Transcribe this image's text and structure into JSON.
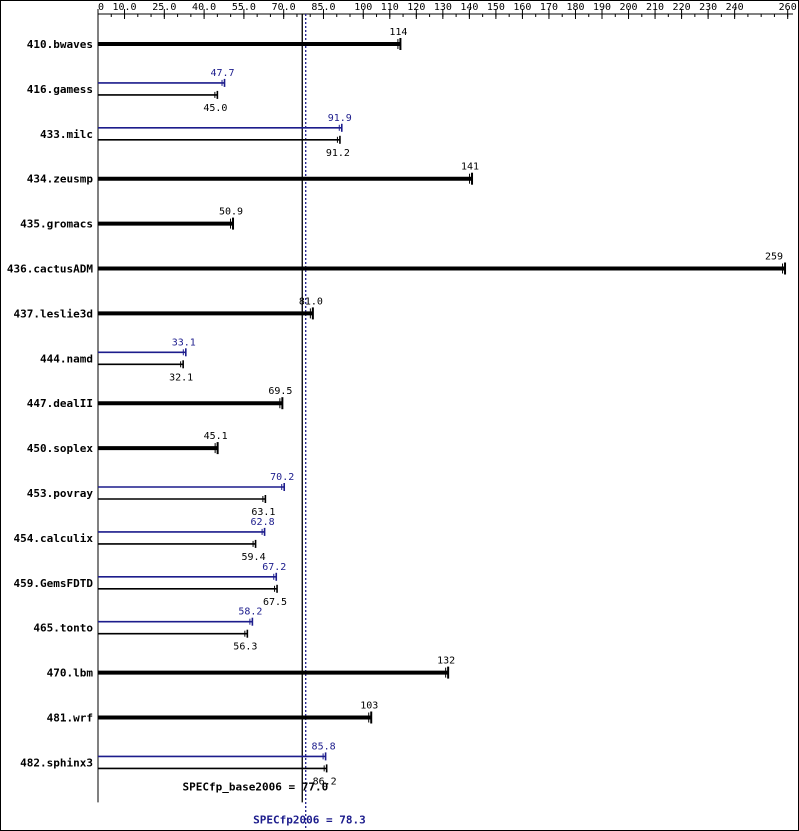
{
  "chart_data": {
    "type": "bar",
    "orientation": "horizontal",
    "axis": {
      "ticks": [
        0,
        10,
        25,
        40,
        55,
        70,
        85,
        100,
        110,
        120,
        130,
        140,
        150,
        160,
        170,
        180,
        190,
        200,
        210,
        220,
        230,
        240,
        260
      ],
      "tick_labels": [
        "0",
        "10.0",
        "25.0",
        "40.0",
        "55.0",
        "70.0",
        "85.0",
        "100",
        "110",
        "120",
        "130",
        "140",
        "150",
        "160",
        "170",
        "180",
        "190",
        "200",
        "210",
        "220",
        "230",
        "240",
        "260"
      ],
      "xlim": [
        0,
        262
      ]
    },
    "categories": [
      "410.bwaves",
      "416.gamess",
      "433.milc",
      "434.zeusmp",
      "435.gromacs",
      "436.cactusADM",
      "437.leslie3d",
      "444.namd",
      "447.dealII",
      "450.soplex",
      "453.povray",
      "454.calculix",
      "459.GemsFDTD",
      "465.tonto",
      "470.lbm",
      "481.wrf",
      "482.sphinx3"
    ],
    "series": [
      {
        "key": "base",
        "color": "#000000",
        "values": [
          114,
          45.0,
          91.2,
          141,
          50.9,
          259,
          81.0,
          32.1,
          69.5,
          45.1,
          63.1,
          59.4,
          67.5,
          56.3,
          132,
          103,
          86.2
        ],
        "labels": [
          "114",
          "45.0",
          "91.2",
          "141",
          "50.9",
          "259",
          "81.0",
          "32.1",
          "69.5",
          "45.1",
          "63.1",
          "59.4",
          "67.5",
          "56.3",
          "132",
          "103",
          "86.2"
        ]
      },
      {
        "key": "peak",
        "color": "#1c1c8c",
        "values": [
          null,
          47.7,
          91.9,
          null,
          null,
          null,
          null,
          33.1,
          null,
          null,
          70.2,
          62.8,
          67.2,
          58.2,
          null,
          null,
          85.8
        ],
        "labels": [
          null,
          "47.7",
          "91.9",
          null,
          null,
          null,
          null,
          "33.1",
          null,
          null,
          "70.2",
          "62.8",
          "67.2",
          "58.2",
          null,
          null,
          "85.8"
        ]
      }
    ],
    "reference_lines": [
      {
        "key": "base",
        "value": 77.0,
        "label": "SPECfp_base2006 = 77.0",
        "color": "#000000",
        "style": "solid"
      },
      {
        "key": "peak",
        "value": 78.3,
        "label": "SPECfp2006 = 78.3",
        "color": "#1c1c8c",
        "style": "dotted"
      }
    ],
    "grid": false
  }
}
